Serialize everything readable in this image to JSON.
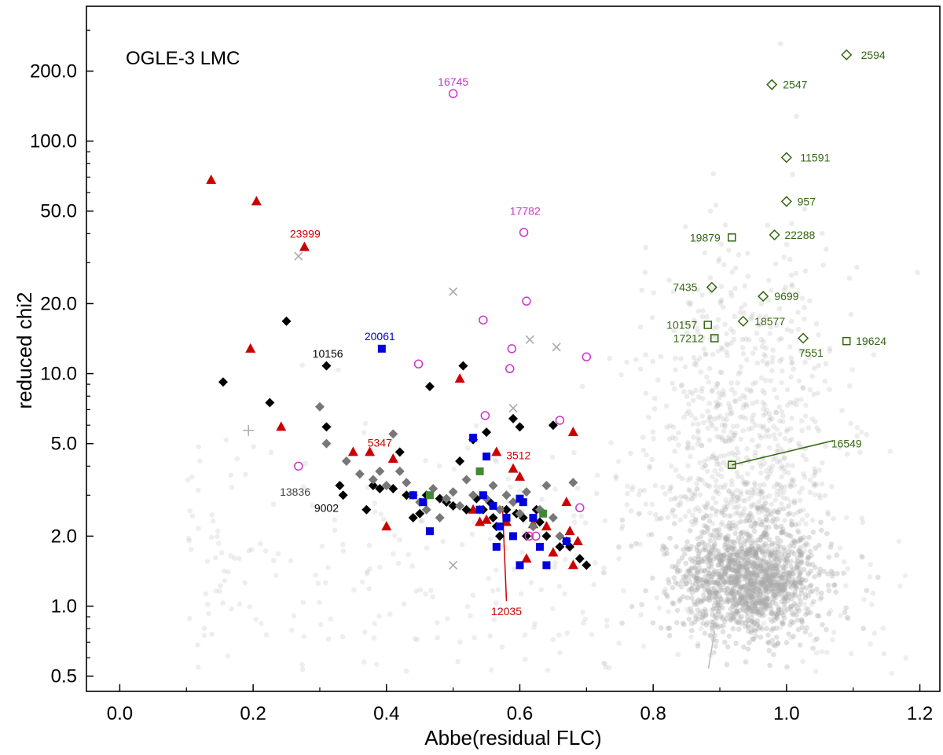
{
  "chart_data": {
    "type": "scatter",
    "title": "OGLE-3 LMC",
    "xlabel": "Abbe(residual FLC)",
    "ylabel": "reduced chi2",
    "xlim": [
      -0.05,
      1.23
    ],
    "ylim": [
      0.43,
      380
    ],
    "yscale": "log",
    "x_ticks": [
      0.0,
      0.2,
      0.4,
      0.6,
      0.8,
      1.0,
      1.2
    ],
    "x_tick_labels": [
      "0.0",
      "0.2",
      "0.4",
      "0.6",
      "0.8",
      "1.0",
      "1.2"
    ],
    "y_ticks": [
      0.5,
      1.0,
      2.0,
      5.0,
      10.0,
      20.0,
      50.0,
      100.0,
      200.0
    ],
    "y_tick_labels": [
      "0.5",
      "1.0",
      "2.0",
      "5.0",
      "10.0",
      "20.0",
      "50.0",
      "100.0",
      "200.0"
    ],
    "colors": {
      "background": "#aaaaaa",
      "black": "#000000",
      "gray": "#777777",
      "red": "#cc0000",
      "blue": "#0000dd",
      "green": "#448833",
      "magenta": "#cc33cc",
      "lightgray": "#aaaaaa",
      "darkgreen": "#336611"
    },
    "background_cloud": {
      "description": "dense cloud of grey points",
      "core_center": [
        0.94,
        1.3
      ],
      "approx_count": 2600
    },
    "series": [
      {
        "name": "red-triangles",
        "marker": "triangle",
        "color": "#cc0000",
        "points": [
          [
            0.137,
            68
          ],
          [
            0.205,
            55
          ],
          [
            0.277,
            35
          ],
          [
            0.196,
            12.8
          ],
          [
            0.242,
            5.9
          ],
          [
            0.35,
            4.6
          ],
          [
            0.375,
            4.6
          ],
          [
            0.4,
            2.2
          ],
          [
            0.41,
            4.3
          ],
          [
            0.51,
            9.5
          ],
          [
            0.53,
            2.6
          ],
          [
            0.54,
            2.3
          ],
          [
            0.55,
            2.35
          ],
          [
            0.565,
            4.6
          ],
          [
            0.58,
            2.3
          ],
          [
            0.59,
            3.9
          ],
          [
            0.6,
            3.6
          ],
          [
            0.61,
            1.6
          ],
          [
            0.62,
            2.25
          ],
          [
            0.64,
            2.2
          ],
          [
            0.65,
            1.7
          ],
          [
            0.67,
            2.8
          ],
          [
            0.675,
            2.1
          ],
          [
            0.68,
            1.5
          ],
          [
            0.68,
            5.6
          ],
          [
            0.687,
            1.9
          ]
        ]
      },
      {
        "name": "black-diamonds",
        "marker": "diamond",
        "color": "#000000",
        "points": [
          [
            0.155,
            9.2
          ],
          [
            0.225,
            7.5
          ],
          [
            0.25,
            16.8
          ],
          [
            0.31,
            10.8
          ],
          [
            0.31,
            5.9
          ],
          [
            0.33,
            3.3
          ],
          [
            0.335,
            3.0
          ],
          [
            0.37,
            2.6
          ],
          [
            0.38,
            3.3
          ],
          [
            0.39,
            3.2
          ],
          [
            0.41,
            3.2
          ],
          [
            0.42,
            4.6
          ],
          [
            0.43,
            3.0
          ],
          [
            0.44,
            2.4
          ],
          [
            0.45,
            2.5
          ],
          [
            0.46,
            3.0
          ],
          [
            0.465,
            8.8
          ],
          [
            0.48,
            2.9
          ],
          [
            0.49,
            2.8
          ],
          [
            0.5,
            2.7
          ],
          [
            0.51,
            4.2
          ],
          [
            0.515,
            10.8
          ],
          [
            0.52,
            2.6
          ],
          [
            0.53,
            5.2
          ],
          [
            0.535,
            2.9
          ],
          [
            0.545,
            2.6
          ],
          [
            0.55,
            5.6
          ],
          [
            0.555,
            2.8
          ],
          [
            0.56,
            2.4
          ],
          [
            0.565,
            2.2
          ],
          [
            0.57,
            2.0
          ],
          [
            0.58,
            2.6
          ],
          [
            0.59,
            6.4
          ],
          [
            0.595,
            2.5
          ],
          [
            0.6,
            5.9
          ],
          [
            0.605,
            2.4
          ],
          [
            0.61,
            2.0
          ],
          [
            0.62,
            2.2
          ],
          [
            0.625,
            2.6
          ],
          [
            0.63,
            2.3
          ],
          [
            0.64,
            2.0
          ],
          [
            0.65,
            6.0
          ],
          [
            0.66,
            1.8
          ],
          [
            0.67,
            1.9
          ],
          [
            0.675,
            1.8
          ],
          [
            0.69,
            1.6
          ],
          [
            0.7,
            1.5
          ]
        ]
      },
      {
        "name": "gray-diamonds",
        "marker": "diamond",
        "color": "#777777",
        "points": [
          [
            0.3,
            7.2
          ],
          [
            0.31,
            5.0
          ],
          [
            0.34,
            4.2
          ],
          [
            0.36,
            3.7
          ],
          [
            0.38,
            3.5
          ],
          [
            0.39,
            3.8
          ],
          [
            0.4,
            3.3
          ],
          [
            0.41,
            5.5
          ],
          [
            0.42,
            3.8
          ],
          [
            0.43,
            3.4
          ],
          [
            0.44,
            3.0
          ],
          [
            0.45,
            2.8
          ],
          [
            0.46,
            2.6
          ],
          [
            0.47,
            3.2
          ],
          [
            0.48,
            2.4
          ],
          [
            0.49,
            2.9
          ],
          [
            0.5,
            3.1
          ],
          [
            0.51,
            2.7
          ],
          [
            0.52,
            3.5
          ],
          [
            0.53,
            3.0
          ],
          [
            0.54,
            2.6
          ],
          [
            0.55,
            2.9
          ],
          [
            0.56,
            3.3
          ],
          [
            0.57,
            2.6
          ],
          [
            0.58,
            3.0
          ],
          [
            0.59,
            2.8
          ],
          [
            0.6,
            2.5
          ],
          [
            0.61,
            3.1
          ],
          [
            0.62,
            2.2
          ],
          [
            0.63,
            2.6
          ],
          [
            0.64,
            3.3
          ],
          [
            0.65,
            2.4
          ],
          [
            0.66,
            2.0
          ],
          [
            0.68,
            3.4
          ]
        ]
      },
      {
        "name": "blue-squares",
        "marker": "square",
        "color": "#0000dd",
        "points": [
          [
            0.393,
            12.8
          ],
          [
            0.44,
            3.0
          ],
          [
            0.455,
            2.8
          ],
          [
            0.465,
            2.1
          ],
          [
            0.53,
            5.3
          ],
          [
            0.54,
            2.6
          ],
          [
            0.545,
            3.0
          ],
          [
            0.55,
            4.4
          ],
          [
            0.56,
            2.7
          ],
          [
            0.565,
            1.8
          ],
          [
            0.57,
            2.2
          ],
          [
            0.58,
            2.4
          ],
          [
            0.59,
            2.0
          ],
          [
            0.6,
            2.9
          ],
          [
            0.6,
            1.5
          ],
          [
            0.605,
            2.8
          ],
          [
            0.62,
            2.4
          ],
          [
            0.63,
            1.8
          ],
          [
            0.64,
            1.5
          ],
          [
            0.67,
            1.9
          ]
        ]
      },
      {
        "name": "green-squares",
        "marker": "square",
        "color": "#448833",
        "points": [
          [
            0.465,
            3.0
          ],
          [
            0.54,
            3.8
          ],
          [
            0.635,
            2.5
          ]
        ]
      },
      {
        "name": "magenta-circles",
        "marker": "open-circle",
        "color": "#cc33cc",
        "points": [
          [
            0.5,
            160
          ],
          [
            0.606,
            40.5
          ],
          [
            0.61,
            20.5
          ],
          [
            0.545,
            17.0
          ],
          [
            0.588,
            12.8
          ],
          [
            0.585,
            10.5
          ],
          [
            0.448,
            11.0
          ],
          [
            0.7,
            11.8
          ],
          [
            0.548,
            6.6
          ],
          [
            0.66,
            6.3
          ],
          [
            0.268,
            4.0
          ],
          [
            0.614,
            2.0
          ],
          [
            0.624,
            2.0
          ],
          [
            0.69,
            2.65
          ]
        ]
      },
      {
        "name": "gray-crosses",
        "marker": "x",
        "color": "#aaaaaa",
        "points": [
          [
            0.268,
            32
          ],
          [
            0.5,
            22.5
          ],
          [
            0.615,
            14
          ],
          [
            0.655,
            13
          ],
          [
            0.59,
            7.1
          ],
          [
            0.5,
            1.5
          ]
        ]
      },
      {
        "name": "gray-plus",
        "marker": "plus",
        "color": "#aaaaaa",
        "points": [
          [
            0.193,
            5.7
          ]
        ]
      },
      {
        "name": "green-open-diamonds",
        "marker": "open-diamond",
        "color": "#336611",
        "points": [
          [
            1.09,
            235
          ],
          [
            0.978,
            175
          ],
          [
            1.0,
            85
          ],
          [
            1.0,
            55
          ],
          [
            0.982,
            39.5
          ],
          [
            0.888,
            23.5
          ],
          [
            0.965,
            21.5
          ],
          [
            0.935,
            16.8
          ],
          [
            1.025,
            14.2
          ]
        ]
      },
      {
        "name": "green-open-squares",
        "marker": "open-square",
        "color": "#336611",
        "points": [
          [
            0.918,
            38.5
          ],
          [
            0.882,
            16.2
          ],
          [
            0.892,
            14.2
          ],
          [
            1.09,
            13.8
          ],
          [
            0.918,
            4.05
          ]
        ]
      }
    ],
    "annotations": [
      {
        "text": "16745",
        "x": 0.5,
        "y": 180,
        "color": "#cc33cc"
      },
      {
        "text": "17782",
        "x": 0.608,
        "y": 50,
        "color": "#cc33cc"
      },
      {
        "text": "23999",
        "x": 0.278,
        "y": 40,
        "color": "#cc0000"
      },
      {
        "text": "20061",
        "x": 0.39,
        "y": 14.5,
        "color": "#0000dd"
      },
      {
        "text": "10156",
        "x": 0.312,
        "y": 12.2,
        "color": "#000000"
      },
      {
        "text": "5347",
        "x": 0.39,
        "y": 5.05,
        "color": "#cc0000"
      },
      {
        "text": "3512",
        "x": 0.598,
        "y": 4.45,
        "color": "#cc0000"
      },
      {
        "text": "13836",
        "x": 0.263,
        "y": 3.1,
        "color": "#444444"
      },
      {
        "text": "9002",
        "x": 0.31,
        "y": 2.65,
        "color": "#000000"
      },
      {
        "text": "12035",
        "x": 0.58,
        "y": 0.95,
        "color": "#cc0000"
      },
      {
        "text": "2594",
        "x": 1.13,
        "y": 235,
        "color": "#336611"
      },
      {
        "text": "2547",
        "x": 1.013,
        "y": 175,
        "color": "#336611"
      },
      {
        "text": "11591",
        "x": 1.043,
        "y": 85,
        "color": "#336611"
      },
      {
        "text": "957",
        "x": 1.03,
        "y": 55,
        "color": "#336611"
      },
      {
        "text": "22288",
        "x": 1.02,
        "y": 39.5,
        "color": "#336611"
      },
      {
        "text": "19879",
        "x": 0.878,
        "y": 38.5,
        "color": "#336611"
      },
      {
        "text": "7435",
        "x": 0.848,
        "y": 23.5,
        "color": "#336611"
      },
      {
        "text": "9699",
        "x": 1.0,
        "y": 21.5,
        "color": "#336611"
      },
      {
        "text": "18577",
        "x": 0.975,
        "y": 16.8,
        "color": "#336611"
      },
      {
        "text": "10157",
        "x": 0.843,
        "y": 16.2,
        "color": "#336611"
      },
      {
        "text": "17212",
        "x": 0.853,
        "y": 14.2,
        "color": "#336611"
      },
      {
        "text": "7551",
        "x": 1.037,
        "y": 12.3,
        "color": "#336611"
      },
      {
        "text": "19624",
        "x": 1.127,
        "y": 13.8,
        "color": "#336611"
      },
      {
        "text": "16549",
        "x": 1.09,
        "y": 5.0,
        "color": "#336611"
      }
    ],
    "leader_lines": [
      {
        "from": [
          0.918,
          4.05
        ],
        "to": [
          1.07,
          5.15
        ],
        "color": "#336611"
      },
      {
        "from": [
          0.574,
          2.7
        ],
        "to": [
          0.58,
          1.05
        ],
        "color": "#cc0000"
      },
      {
        "from": [
          0.892,
          0.78
        ],
        "to": [
          0.883,
          0.54
        ],
        "color": "#bbbbbb"
      }
    ]
  }
}
